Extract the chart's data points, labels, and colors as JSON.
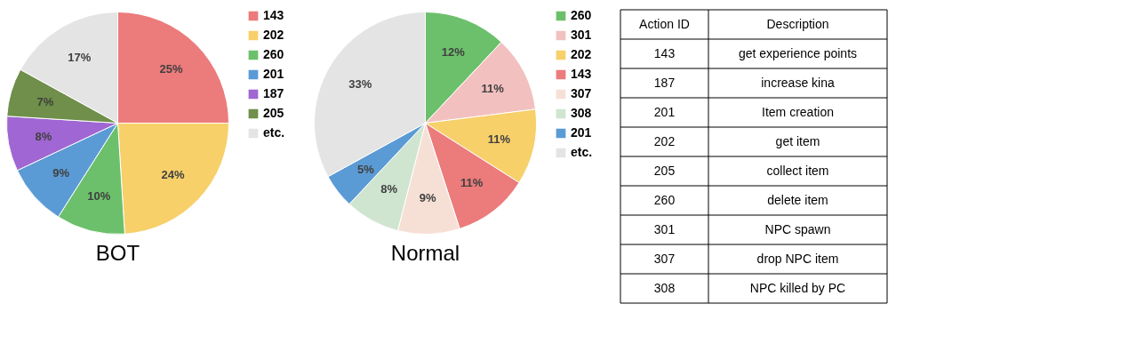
{
  "chart_data": [
    {
      "type": "pie",
      "title": "BOT",
      "categories": [
        "143",
        "202",
        "260",
        "201",
        "187",
        "205",
        "etc."
      ],
      "values": [
        25,
        24,
        10,
        9,
        8,
        7,
        17
      ],
      "colors": [
        "#ec7b7b",
        "#f7d06a",
        "#6cc06c",
        "#5b9bd5",
        "#a066d3",
        "#6f8f4a",
        "#e4e4e4"
      ],
      "value_labels": [
        "25%",
        "24%",
        "10%",
        "9%",
        "8%",
        "7%",
        "17%"
      ],
      "legend": "right"
    },
    {
      "type": "pie",
      "title": "Normal",
      "categories": [
        "260",
        "301",
        "202",
        "143",
        "307",
        "308",
        "201",
        "etc."
      ],
      "values": [
        12,
        11,
        11,
        11,
        9,
        8,
        5,
        33
      ],
      "colors": [
        "#6cc06c",
        "#f3c0c0",
        "#f7d06a",
        "#ec7b7b",
        "#f6e0d6",
        "#cfe5cf",
        "#5b9bd5",
        "#e4e4e4"
      ],
      "value_labels": [
        "12%",
        "11%",
        "11%",
        "11%",
        "9%",
        "8%",
        "5%",
        "33%"
      ],
      "legend": "right"
    },
    {
      "type": "other",
      "annotations": [
        "Action ID",
        "Description",
        "143",
        "get experience points",
        "187",
        "increase kina",
        "201",
        "Item creation",
        "202",
        "get item",
        "205",
        "collect item",
        "260",
        "delete item",
        "301",
        "NPC spawn",
        "307",
        "drop NPC item",
        "308",
        "NPC killed by PC"
      ]
    }
  ]
}
